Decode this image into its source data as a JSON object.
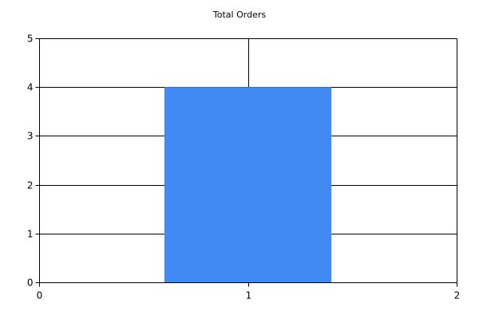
{
  "colors": {
    "bar": "#4189f3",
    "grid": "#000000",
    "axis": "#000000",
    "background": "#ffffff"
  },
  "chart_data": {
    "type": "bar",
    "title": "Total Orders",
    "xlabel": "",
    "ylabel": "",
    "grid": true,
    "legend": "none",
    "xlim": [
      0,
      2
    ],
    "ylim": [
      0,
      5
    ],
    "x_ticks": [
      0,
      1,
      2
    ],
    "y_ticks": [
      0,
      1,
      2,
      3,
      4,
      5
    ],
    "bars": [
      {
        "x": 1,
        "value": 4,
        "x_start": 0.6,
        "x_end": 1.4
      }
    ]
  }
}
